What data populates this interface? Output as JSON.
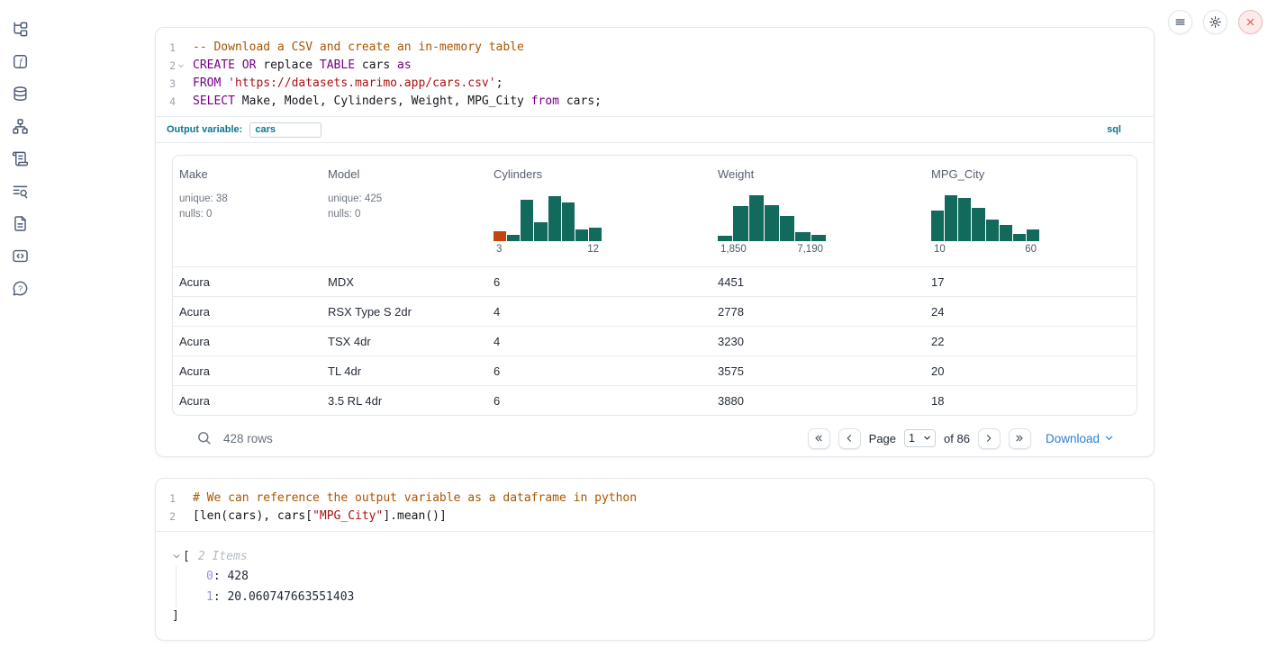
{
  "colors": {
    "histogram_green": "#116a5c",
    "histogram_orange": "#c2450e",
    "accent": "#0e7490",
    "link_blue": "#2d7dd2",
    "close_red": "#e25555"
  },
  "sidebar": {
    "icons": [
      "file-tree-icon",
      "function-icon",
      "database-icon",
      "dependency-graph-icon",
      "scratchpad-icon",
      "logs-icon",
      "documentation-icon",
      "snippets-icon",
      "help-icon"
    ]
  },
  "topbar": {
    "buttons": [
      {
        "icon": "menu-icon",
        "variant": "default"
      },
      {
        "icon": "settings-gear-icon",
        "variant": "default"
      },
      {
        "icon": "close-icon",
        "variant": "danger"
      }
    ]
  },
  "cell1": {
    "language_badge": "sql",
    "output_variable_label": "Output variable:",
    "output_variable_value": "cars",
    "code": [
      {
        "num": "1",
        "fold": false,
        "tokens": [
          {
            "t": "-- Download a CSV and create an in-memory table",
            "c": "comment"
          }
        ]
      },
      {
        "num": "2",
        "fold": true,
        "tokens": [
          {
            "t": "CREATE OR",
            "c": "keyword"
          },
          {
            "t": " replace ",
            "c": "plain"
          },
          {
            "t": "TABLE",
            "c": "keyword"
          },
          {
            "t": " cars ",
            "c": "plain"
          },
          {
            "t": "as",
            "c": "keyword"
          }
        ]
      },
      {
        "num": "3",
        "fold": false,
        "tokens": [
          {
            "t": "FROM",
            "c": "keyword"
          },
          {
            "t": " ",
            "c": "plain"
          },
          {
            "t": "'https://datasets.marimo.app/cars.csv'",
            "c": "string"
          },
          {
            "t": ";",
            "c": "plain"
          }
        ]
      },
      {
        "num": "4",
        "fold": false,
        "tokens": [
          {
            "t": "SELECT",
            "c": "keyword"
          },
          {
            "t": " Make, Model, Cylinders, Weight, MPG_City ",
            "c": "plain"
          },
          {
            "t": "from",
            "c": "keyword"
          },
          {
            "t": " cars;",
            "c": "plain"
          }
        ]
      }
    ],
    "table": {
      "columns": [
        {
          "name": "Make",
          "stats": [
            "unique: 38",
            "nulls: 0"
          ]
        },
        {
          "name": "Model",
          "stats": [
            "unique: 425",
            "nulls: 0"
          ]
        },
        {
          "name": "Cylinders",
          "histogram": {
            "min_label": "3",
            "max_label": "12",
            "bars": [
              {
                "h": 0.22,
                "c": "orange"
              },
              {
                "h": 0.13,
                "c": "green"
              },
              {
                "h": 0.88,
                "c": "green"
              },
              {
                "h": 0.41,
                "c": "green"
              },
              {
                "h": 0.97,
                "c": "green"
              },
              {
                "h": 0.83,
                "c": "green"
              },
              {
                "h": 0.25,
                "c": "green"
              },
              {
                "h": 0.29,
                "c": "green"
              }
            ]
          }
        },
        {
          "name": "Weight",
          "histogram": {
            "min_label": "1,850",
            "max_label": "7,190",
            "bars": [
              {
                "h": 0.11,
                "c": "green"
              },
              {
                "h": 0.75,
                "c": "green"
              },
              {
                "h": 0.98,
                "c": "green"
              },
              {
                "h": 0.76,
                "c": "green"
              },
              {
                "h": 0.53,
                "c": "green"
              },
              {
                "h": 0.19,
                "c": "green"
              },
              {
                "h": 0.13,
                "c": "green"
              }
            ]
          }
        },
        {
          "name": "MPG_City",
          "histogram": {
            "min_label": "10",
            "max_label": "60",
            "bars": [
              {
                "h": 0.66,
                "c": "green"
              },
              {
                "h": 0.98,
                "c": "green"
              },
              {
                "h": 0.93,
                "c": "green"
              },
              {
                "h": 0.72,
                "c": "green"
              },
              {
                "h": 0.47,
                "c": "green"
              },
              {
                "h": 0.34,
                "c": "green"
              },
              {
                "h": 0.16,
                "c": "green"
              },
              {
                "h": 0.25,
                "c": "green"
              }
            ]
          }
        }
      ],
      "rows": [
        [
          "Acura",
          "MDX",
          "6",
          "4451",
          "17"
        ],
        [
          "Acura",
          "RSX Type S 2dr",
          "4",
          "2778",
          "24"
        ],
        [
          "Acura",
          "TSX 4dr",
          "4",
          "3230",
          "22"
        ],
        [
          "Acura",
          "TL 4dr",
          "6",
          "3575",
          "20"
        ],
        [
          "Acura",
          "3.5 RL 4dr",
          "6",
          "3880",
          "18"
        ]
      ],
      "footer": {
        "row_count": "428 rows",
        "page_label": "Page",
        "page_value": "1",
        "of_label": "of 86",
        "download_label": "Download",
        "pager_icons": [
          "chevrons-left-icon",
          "chevron-left-icon",
          "chevron-right-icon",
          "chevrons-right-icon"
        ]
      }
    }
  },
  "cell2": {
    "code": [
      {
        "num": "1",
        "fold": false,
        "tokens": [
          {
            "t": "# We can reference the output variable as a dataframe in python",
            "c": "comment"
          }
        ]
      },
      {
        "num": "2",
        "fold": false,
        "tokens": [
          {
            "t": "[len(cars), cars[",
            "c": "plain"
          },
          {
            "t": "\"MPG_City\"",
            "c": "string"
          },
          {
            "t": "].mean()]",
            "c": "plain"
          }
        ]
      }
    ],
    "output": {
      "open_bracket": "[",
      "items_label": "2 Items",
      "entries": [
        {
          "key": "0",
          "value": "428"
        },
        {
          "key": "1",
          "value": "20.060747663551403"
        }
      ],
      "close_bracket": "]"
    }
  }
}
